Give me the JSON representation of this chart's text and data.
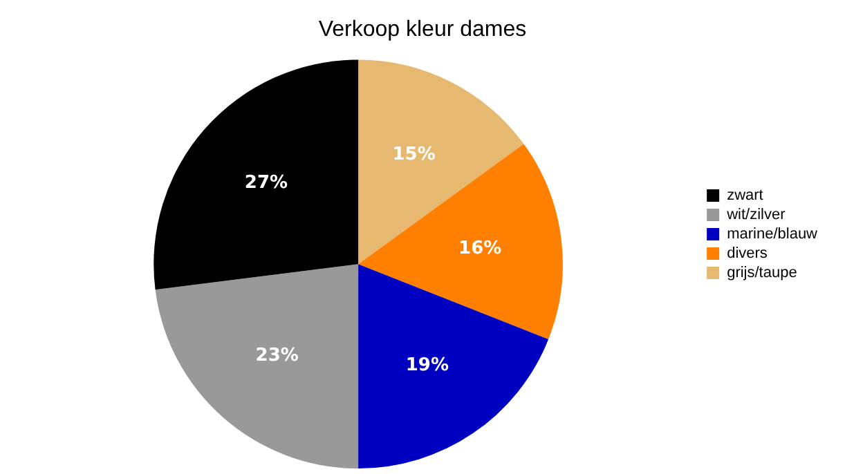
{
  "chart_data": {
    "type": "pie",
    "title": "Verkoop kleur dames",
    "categories": [
      "zwart",
      "wit/zilver",
      "marine/blauw",
      "divers",
      "grijs/taupe"
    ],
    "values": [
      27,
      23,
      19,
      16,
      15
    ],
    "colors": [
      "#000000",
      "#999999",
      "#0000c0",
      "#ff8000",
      "#e6b870"
    ],
    "value_labels": [
      "27%",
      "23%",
      "19%",
      "16%",
      "15%"
    ],
    "legend": "right"
  }
}
